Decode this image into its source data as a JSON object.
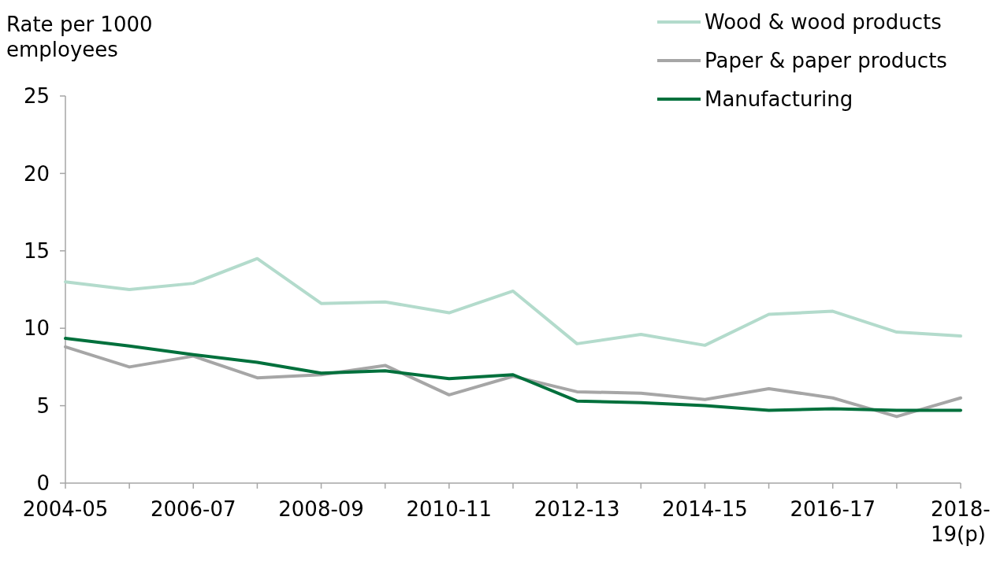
{
  "chart_data": {
    "type": "line",
    "ylabel": "Rate per 1000 employees",
    "categories": [
      "2004-05",
      null,
      "2006-07",
      null,
      "2008-09",
      null,
      "2010-11",
      null,
      "2012-13",
      null,
      "2014-15",
      null,
      "2016-17",
      null,
      "2018-19(p)"
    ],
    "series": [
      {
        "name": "Wood & wood products",
        "color": "#b3dbcc",
        "values": [
          13.0,
          12.5,
          12.9,
          14.5,
          11.6,
          11.7,
          11.0,
          12.4,
          9.0,
          9.6,
          8.9,
          10.9,
          11.1,
          9.75,
          9.5
        ]
      },
      {
        "name": "Paper & paper products",
        "color": "#a6a6a6",
        "values": [
          8.8,
          7.5,
          8.2,
          6.8,
          7.0,
          7.6,
          5.7,
          6.9,
          5.9,
          5.8,
          5.4,
          6.1,
          5.5,
          4.3,
          5.5
        ]
      },
      {
        "name": "Manufacturing",
        "color": "#00703c",
        "values": [
          9.35,
          8.85,
          8.3,
          7.8,
          7.1,
          7.25,
          6.75,
          7.0,
          5.3,
          5.2,
          5.0,
          4.7,
          4.8,
          4.7,
          4.7
        ]
      }
    ],
    "ylim": [
      0,
      25
    ],
    "yticks": [
      0,
      5,
      10,
      15,
      20,
      25
    ],
    "grid": false,
    "legend": "top right",
    "marker": "none",
    "line_style": "solid"
  }
}
